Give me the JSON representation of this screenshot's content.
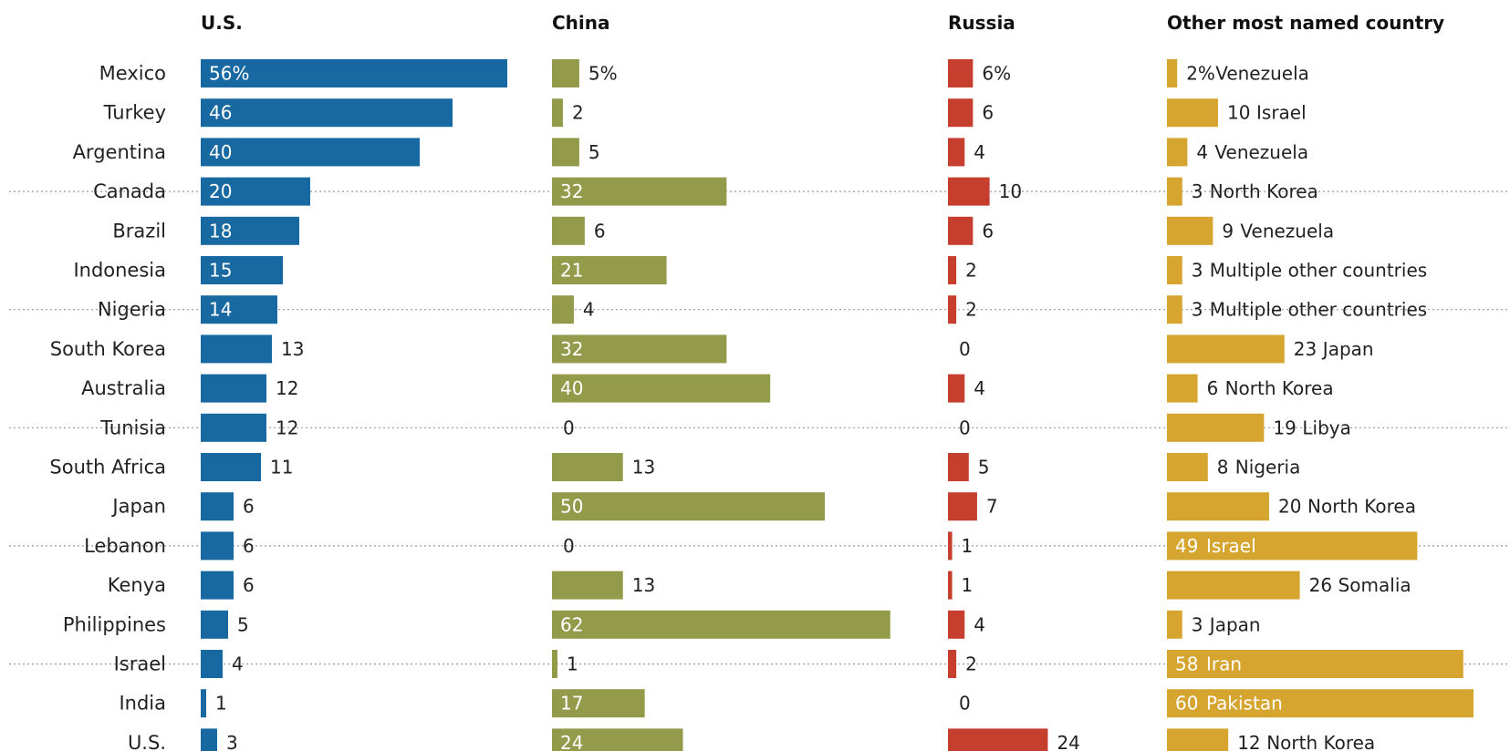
{
  "chart_data": {
    "type": "bar",
    "columns": [
      {
        "key": "us",
        "title": "U.S.",
        "color": "#1868a1"
      },
      {
        "key": "china",
        "title": "China",
        "color": "#939b4a"
      },
      {
        "key": "russia",
        "title": "Russia",
        "color": "#c53e2e"
      },
      {
        "key": "other",
        "title": "Other most named country",
        "color": "#d5a52f"
      }
    ],
    "first_value_suffix": "%",
    "rows": [
      {
        "country": "Mexico",
        "us": 56,
        "china": 5,
        "russia": 6,
        "other": 2,
        "other_name": "Venezuela"
      },
      {
        "country": "Turkey",
        "us": 46,
        "china": 2,
        "russia": 6,
        "other": 10,
        "other_name": "Israel"
      },
      {
        "country": "Argentina",
        "us": 40,
        "china": 5,
        "russia": 4,
        "other": 4,
        "other_name": "Venezuela"
      },
      {
        "country": "Canada",
        "us": 20,
        "china": 32,
        "russia": 10,
        "other": 3,
        "other_name": "North Korea"
      },
      {
        "country": "Brazil",
        "us": 18,
        "china": 6,
        "russia": 6,
        "other": 9,
        "other_name": "Venezuela"
      },
      {
        "country": "Indonesia",
        "us": 15,
        "china": 21,
        "russia": 2,
        "other": 3,
        "other_name": "Multiple other countries"
      },
      {
        "country": "Nigeria",
        "us": 14,
        "china": 4,
        "russia": 2,
        "other": 3,
        "other_name": "Multiple other countries"
      },
      {
        "country": "South Korea",
        "us": 13,
        "china": 32,
        "russia": 0,
        "other": 23,
        "other_name": "Japan"
      },
      {
        "country": "Australia",
        "us": 12,
        "china": 40,
        "russia": 4,
        "other": 6,
        "other_name": "North Korea"
      },
      {
        "country": "Tunisia",
        "us": 12,
        "china": 0,
        "russia": 0,
        "other": 19,
        "other_name": "Libya"
      },
      {
        "country": "South Africa",
        "us": 11,
        "china": 13,
        "russia": 5,
        "other": 8,
        "other_name": "Nigeria"
      },
      {
        "country": "Japan",
        "us": 6,
        "china": 50,
        "russia": 7,
        "other": 20,
        "other_name": "North Korea"
      },
      {
        "country": "Lebanon",
        "us": 6,
        "china": 0,
        "russia": 1,
        "other": 49,
        "other_name": "Israel"
      },
      {
        "country": "Kenya",
        "us": 6,
        "china": 13,
        "russia": 1,
        "other": 26,
        "other_name": "Somalia"
      },
      {
        "country": "Philippines",
        "us": 5,
        "china": 62,
        "russia": 4,
        "other": 3,
        "other_name": "Japan"
      },
      {
        "country": "Israel",
        "us": 4,
        "china": 1,
        "russia": 2,
        "other": 58,
        "other_name": "Iran"
      },
      {
        "country": "India",
        "us": 1,
        "china": 17,
        "russia": 0,
        "other": 60,
        "other_name": "Pakistan"
      },
      {
        "country": "U.S.",
        "us": 3,
        "china": 24,
        "russia": 24,
        "other": 12,
        "other_name": "North Korea"
      }
    ],
    "group_separators_after_rows": [
      2,
      5,
      8,
      11,
      14
    ]
  }
}
